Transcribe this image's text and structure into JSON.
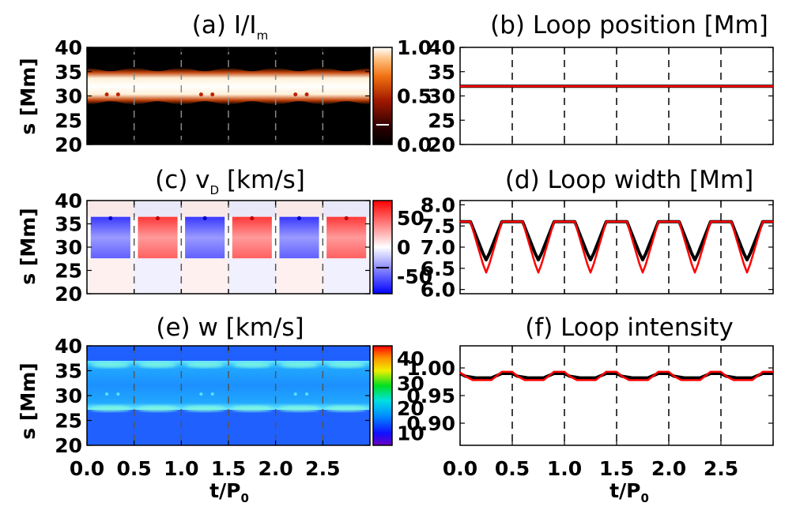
{
  "chart_data": [
    {
      "panel": "a",
      "type": "heatmap",
      "title": "(a) I/I",
      "title_sub": "m",
      "ylabel": "s [Mm]",
      "xlim": [
        0,
        3
      ],
      "ylim": [
        20,
        40
      ],
      "yticks": [
        "40",
        "35",
        "30",
        "25",
        "20"
      ],
      "colorbar": {
        "ticks": [
          "1.0",
          "0.5",
          "0.0"
        ],
        "range": [
          0,
          1.0
        ],
        "colormap": "black-red-orange-white"
      },
      "loop_band": {
        "center": 32,
        "halfwidth_range": [
          3.1,
          3.8
        ],
        "period": 0.5
      },
      "dashed_lines_x": [
        0.5,
        1.0,
        1.5,
        2.0,
        2.5
      ]
    },
    {
      "panel": "b",
      "type": "line",
      "title": "(b) Loop position [Mm]",
      "xlim": [
        0,
        3
      ],
      "ylim": [
        20,
        40
      ],
      "yticks": [
        "40",
        "35",
        "30",
        "25",
        "20"
      ],
      "series": [
        {
          "color": "#000000",
          "x": [
            0,
            0.5,
            1.0,
            1.5,
            2.0,
            2.5,
            3.0
          ],
          "y": [
            32,
            32,
            32,
            32,
            32,
            32,
            32
          ]
        },
        {
          "color": "#ff0000",
          "x": [
            0,
            0.5,
            1.0,
            1.5,
            2.0,
            2.5,
            3.0
          ],
          "y": [
            32,
            32,
            32,
            32,
            32,
            32,
            32
          ]
        }
      ],
      "dashed_lines_x": [
        0.5,
        1.0,
        1.5,
        2.0,
        2.5
      ]
    },
    {
      "panel": "c",
      "type": "heatmap",
      "title": "(c) v",
      "title_sub": "D",
      "title_tail": " [km/s]",
      "ylabel": "s [Mm]",
      "xlim": [
        0,
        3
      ],
      "ylim": [
        20,
        40
      ],
      "yticks": [
        "40",
        "35",
        "30",
        "25",
        "20"
      ],
      "colorbar": {
        "ticks": [
          "50",
          "0",
          "-50"
        ],
        "range": [
          -80,
          80
        ],
        "colormap": "blue-white-red"
      },
      "dashed_lines_x": [
        0.5,
        1.0,
        1.5,
        2.0,
        2.5
      ]
    },
    {
      "panel": "d",
      "type": "line",
      "title": "(d) Loop width [Mm]",
      "xlim": [
        0,
        3
      ],
      "ylim": [
        5.9,
        8.1
      ],
      "yticks": [
        "8.0",
        "7.5",
        "7.0",
        "6.5",
        "6.0"
      ],
      "series": [
        {
          "color": "#000000",
          "x": [
            0,
            0.1,
            0.22,
            0.25,
            0.28,
            0.4,
            0.5,
            0.6,
            0.72,
            0.75,
            0.78,
            0.9,
            1.0,
            1.1,
            1.22,
            1.25,
            1.28,
            1.4,
            1.5,
            1.6,
            1.72,
            1.75,
            1.78,
            1.9,
            2.0,
            2.1,
            2.22,
            2.25,
            2.28,
            2.4,
            2.5,
            2.6,
            2.72,
            2.75,
            2.78,
            2.9,
            3.0
          ],
          "y": [
            7.6,
            7.6,
            6.85,
            6.7,
            6.85,
            7.6,
            7.6,
            7.6,
            6.85,
            6.7,
            6.85,
            7.6,
            7.6,
            7.6,
            6.85,
            6.7,
            6.85,
            7.6,
            7.6,
            7.6,
            6.85,
            6.7,
            6.85,
            7.6,
            7.6,
            7.6,
            6.85,
            6.7,
            6.85,
            7.6,
            7.6,
            7.6,
            6.85,
            6.7,
            6.85,
            7.6,
            7.6
          ]
        },
        {
          "color": "#ff0000",
          "x": [
            0,
            0.1,
            0.22,
            0.25,
            0.28,
            0.4,
            0.5,
            0.6,
            0.72,
            0.75,
            0.78,
            0.9,
            1.0,
            1.1,
            1.22,
            1.25,
            1.28,
            1.4,
            1.5,
            1.6,
            1.72,
            1.75,
            1.78,
            1.9,
            2.0,
            2.1,
            2.22,
            2.25,
            2.28,
            2.4,
            2.5,
            2.6,
            2.72,
            2.75,
            2.78,
            2.9,
            3.0
          ],
          "y": [
            7.6,
            7.6,
            6.6,
            6.4,
            6.6,
            7.6,
            7.6,
            7.6,
            6.6,
            6.4,
            6.6,
            7.6,
            7.6,
            7.6,
            6.6,
            6.4,
            6.6,
            7.6,
            7.6,
            7.6,
            6.6,
            6.4,
            6.6,
            7.6,
            7.6,
            7.6,
            6.6,
            6.4,
            6.6,
            7.6,
            7.6,
            7.6,
            6.6,
            6.4,
            6.6,
            7.6,
            7.6
          ]
        }
      ],
      "dashed_lines_x": [
        0.5,
        1.0,
        1.5,
        2.0,
        2.5
      ]
    },
    {
      "panel": "e",
      "type": "heatmap",
      "title": "(e) w [km/s]",
      "ylabel": "s [Mm]",
      "xlim": [
        0,
        3
      ],
      "ylim": [
        20,
        40
      ],
      "yticks": [
        "40",
        "35",
        "30",
        "25",
        "20"
      ],
      "xticks": [
        "0.0",
        "0.5",
        "1.0",
        "1.5",
        "2.0",
        "2.5"
      ],
      "xlabel": "t/P",
      "xlabel_sub": "0",
      "colorbar": {
        "ticks": [
          "40",
          "30",
          "20",
          "10"
        ],
        "range": [
          5,
          45
        ],
        "colormap": "rainbow"
      },
      "dashed_lines_x": [
        0.5,
        1.0,
        1.5,
        2.0,
        2.5
      ]
    },
    {
      "panel": "f",
      "type": "line",
      "title": "(f) Loop intensity",
      "xlim": [
        0,
        3
      ],
      "ylim": [
        0.86,
        1.04
      ],
      "yticks": [
        "1.00",
        "0.95",
        "0.90"
      ],
      "xticks": [
        "0.0",
        "0.5",
        "1.0",
        "1.5",
        "2.0",
        "2.5"
      ],
      "xlabel": "t/P",
      "xlabel_sub": "0",
      "series": [
        {
          "color": "#000000",
          "x": [
            0,
            0.05,
            0.15,
            0.3,
            0.4,
            0.5,
            0.55,
            0.65,
            0.8,
            0.9,
            1.0,
            1.05,
            1.15,
            1.3,
            1.4,
            1.5,
            1.55,
            1.65,
            1.8,
            1.9,
            2.0,
            2.05,
            2.15,
            2.3,
            2.4,
            2.5,
            2.55,
            2.65,
            2.8,
            2.9,
            3.0
          ],
          "y": [
            0.99,
            0.985,
            0.982,
            0.982,
            0.99,
            0.99,
            0.985,
            0.982,
            0.982,
            0.99,
            0.99,
            0.985,
            0.982,
            0.982,
            0.99,
            0.99,
            0.985,
            0.982,
            0.982,
            0.99,
            0.99,
            0.985,
            0.982,
            0.982,
            0.99,
            0.99,
            0.985,
            0.982,
            0.982,
            0.99,
            0.99
          ]
        },
        {
          "color": "#ff0000",
          "x": [
            0,
            0.05,
            0.12,
            0.3,
            0.4,
            0.5,
            0.55,
            0.62,
            0.8,
            0.9,
            1.0,
            1.05,
            1.12,
            1.3,
            1.4,
            1.5,
            1.55,
            1.62,
            1.8,
            1.9,
            2.0,
            2.05,
            2.12,
            2.3,
            2.4,
            2.5,
            2.55,
            2.62,
            2.8,
            2.9,
            3.0
          ],
          "y": [
            0.992,
            0.985,
            0.978,
            0.978,
            0.993,
            0.993,
            0.985,
            0.978,
            0.978,
            0.993,
            0.993,
            0.985,
            0.978,
            0.978,
            0.993,
            0.993,
            0.985,
            0.978,
            0.978,
            0.993,
            0.993,
            0.985,
            0.978,
            0.978,
            0.993,
            0.993,
            0.985,
            0.978,
            0.978,
            0.993,
            0.993
          ]
        }
      ],
      "dashed_lines_x": [
        0.5,
        1.0,
        1.5,
        2.0,
        2.5
      ]
    }
  ]
}
